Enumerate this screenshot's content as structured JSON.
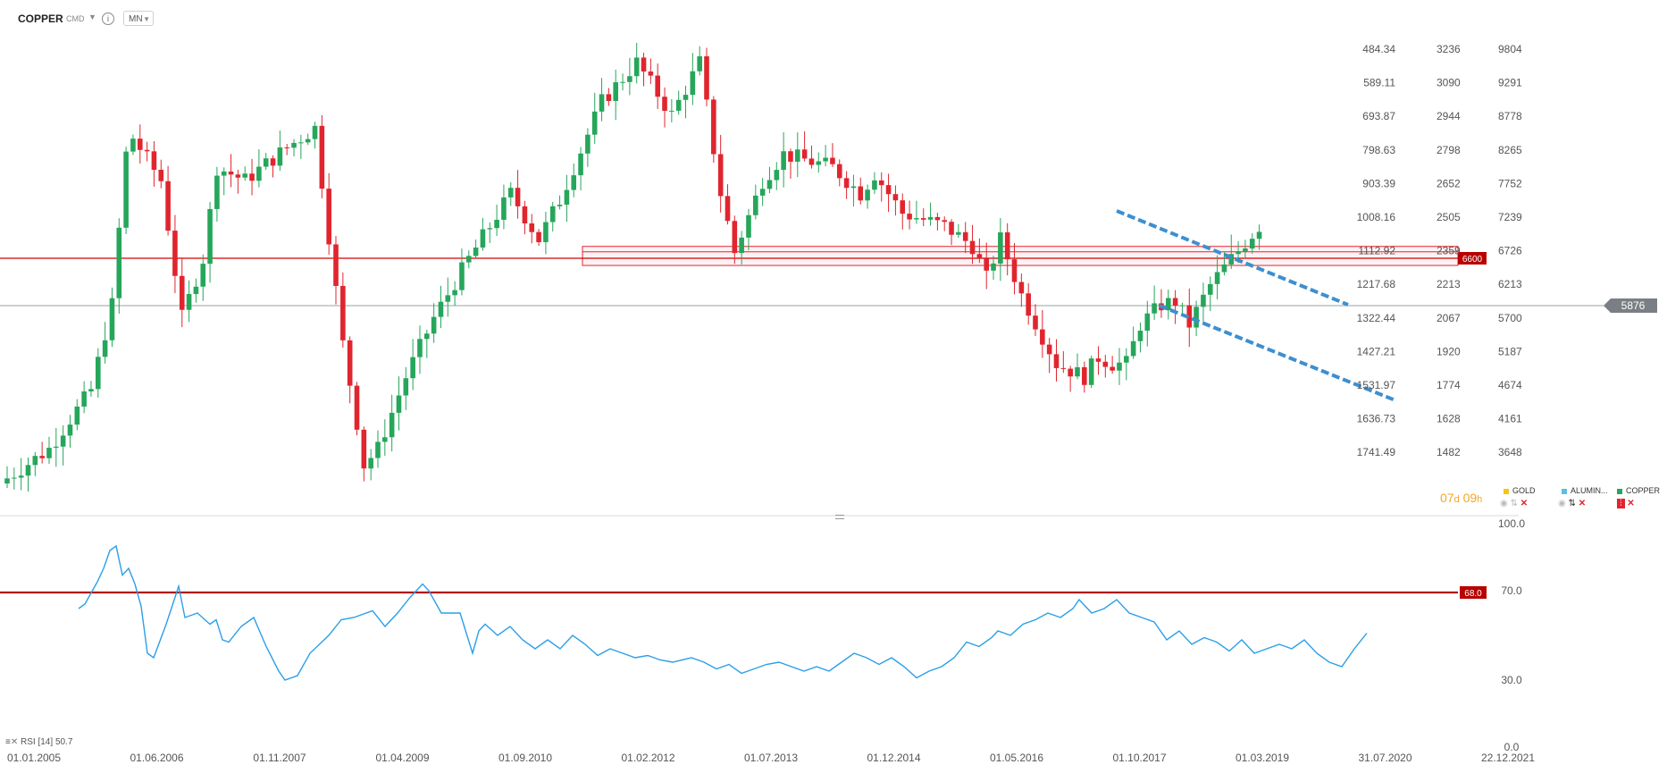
{
  "header": {
    "symbol": "COPPER",
    "category": "CMD",
    "caret": "▼",
    "info_icon": "i",
    "timeframe": "MN",
    "timeframe_caret": "▼"
  },
  "colors": {
    "up": "#26a65b",
    "down": "#e0252e",
    "rsi_line": "#2b9fe8",
    "level": "#d40000",
    "channel": "#3d8fd0",
    "grid_text": "#555555"
  },
  "axis_inner": [
    "484.34",
    "589.11",
    "693.87",
    "798.63",
    "903.39",
    "1008.16",
    "1112.92",
    "1217.68",
    "1322.44",
    "1427.21",
    "1531.97",
    "1636.73",
    "1741.49"
  ],
  "axis_middle": [
    "3236",
    "3090",
    "2944",
    "2798",
    "2652",
    "2505",
    "2359",
    "2213",
    "2067",
    "1920",
    "1774",
    "1628",
    "1482"
  ],
  "axis_price": [
    "9804",
    "9291",
    "8778",
    "8265",
    "7752",
    "7239",
    "6726",
    "6213",
    "5700",
    "5187",
    "4674",
    "4161",
    "3648"
  ],
  "x_labels": [
    "01.01.2005",
    "01.06.2006",
    "01.11.2007",
    "01.04.2009",
    "01.09.2010",
    "01.02.2012",
    "01.07.2013",
    "01.12.2014",
    "01.05.2016",
    "01.10.2017",
    "01.03.2019",
    "31.07.2020",
    "22.12.2021"
  ],
  "level_label": "6600",
  "current_price": "5876",
  "rsi_axis": [
    "100.0",
    "70.0",
    "30.0",
    "0.0"
  ],
  "rsi_level_label": "68.0",
  "rsi_indicator": {
    "name": "RSI [14]",
    "value": "50.7"
  },
  "timer": {
    "d_num": "07",
    "d_unit": "d",
    "h_num": "09",
    "h_unit": "h"
  },
  "legend": [
    {
      "name": "GOLD",
      "color": "#f5c518"
    },
    {
      "name": "ALUMIN...",
      "color": "#5bc0de"
    },
    {
      "name": "COPPER",
      "color": "#26a65b"
    }
  ],
  "chart_data": {
    "type": "candlestick",
    "symbol": "COPPER",
    "interval": "MN",
    "y_axis": {
      "min": 3400,
      "max": 10000
    },
    "horizontal_level": 6600,
    "current_price": 5876,
    "x_range": [
      "01.01.2005",
      "22.12.2021"
    ],
    "months": 180,
    "keypoints_close": [
      [
        0,
        3250
      ],
      [
        6,
        3700
      ],
      [
        12,
        4600
      ],
      [
        15,
        5900
      ],
      [
        17,
        8200
      ],
      [
        18,
        8450
      ],
      [
        22,
        7800
      ],
      [
        25,
        5700
      ],
      [
        28,
        6600
      ],
      [
        30,
        8000
      ],
      [
        34,
        7800
      ],
      [
        40,
        8300
      ],
      [
        44,
        8600
      ],
      [
        48,
        5300
      ],
      [
        50,
        4100
      ],
      [
        51,
        3450
      ],
      [
        53,
        3700
      ],
      [
        57,
        4800
      ],
      [
        61,
        5700
      ],
      [
        66,
        6600
      ],
      [
        72,
        7600
      ],
      [
        76,
        6900
      ],
      [
        79,
        7500
      ],
      [
        85,
        9000
      ],
      [
        90,
        9600
      ],
      [
        95,
        8800
      ],
      [
        99,
        9600
      ],
      [
        102,
        7600
      ],
      [
        104,
        6700
      ],
      [
        108,
        7800
      ],
      [
        111,
        8200
      ],
      [
        118,
        8000
      ],
      [
        122,
        7600
      ],
      [
        124,
        7900
      ],
      [
        128,
        7300
      ],
      [
        134,
        7100
      ],
      [
        138,
        6800
      ],
      [
        140,
        6300
      ],
      [
        142,
        6900
      ],
      [
        145,
        6050
      ],
      [
        150,
        5000
      ],
      [
        154,
        4800
      ],
      [
        156,
        5100
      ],
      [
        158,
        5000
      ],
      [
        160,
        5000
      ],
      [
        162,
        5600
      ],
      [
        165,
        5900
      ],
      [
        167,
        5950
      ],
      [
        169,
        5600
      ],
      [
        172,
        6200
      ],
      [
        175,
        6600
      ],
      [
        179,
        7100
      ]
    ],
    "rsi": {
      "period": 14,
      "last_value": 50.7,
      "level": 68.0,
      "range": [
        0,
        100
      ],
      "keypoints": [
        [
          8,
          62
        ],
        [
          9,
          64
        ],
        [
          11,
          74
        ],
        [
          12,
          80
        ],
        [
          13,
          88
        ],
        [
          14,
          90
        ],
        [
          15,
          77
        ],
        [
          16,
          80
        ],
        [
          17,
          73
        ],
        [
          18,
          63
        ],
        [
          19,
          42
        ],
        [
          20,
          40
        ],
        [
          22,
          55
        ],
        [
          24,
          72
        ],
        [
          25,
          58
        ],
        [
          27,
          60
        ],
        [
          29,
          55
        ],
        [
          30,
          57
        ],
        [
          31,
          48
        ],
        [
          32,
          47
        ],
        [
          34,
          54
        ],
        [
          36,
          58
        ],
        [
          38,
          45
        ],
        [
          40,
          34
        ],
        [
          41,
          30
        ],
        [
          43,
          32
        ],
        [
          45,
          42
        ],
        [
          48,
          50
        ],
        [
          50,
          57
        ],
        [
          52,
          58
        ],
        [
          55,
          61
        ],
        [
          57,
          54
        ],
        [
          59,
          60
        ],
        [
          61,
          67
        ],
        [
          63,
          73
        ],
        [
          64,
          70
        ],
        [
          66,
          60
        ],
        [
          69,
          60
        ],
        [
          71,
          42
        ],
        [
          72,
          52
        ],
        [
          73,
          55
        ],
        [
          75,
          50
        ],
        [
          77,
          54
        ],
        [
          79,
          48
        ],
        [
          81,
          44
        ],
        [
          83,
          48
        ],
        [
          85,
          44
        ],
        [
          87,
          50
        ],
        [
          89,
          46
        ],
        [
          91,
          41
        ],
        [
          93,
          44
        ],
        [
          95,
          42
        ],
        [
          97,
          40
        ],
        [
          99,
          41
        ],
        [
          101,
          39
        ],
        [
          103,
          38
        ],
        [
          106,
          40
        ],
        [
          108,
          38
        ],
        [
          110,
          35
        ],
        [
          112,
          37
        ],
        [
          114,
          33
        ],
        [
          116,
          35
        ],
        [
          118,
          37
        ],
        [
          120,
          38
        ],
        [
          122,
          36
        ],
        [
          124,
          34
        ],
        [
          126,
          36
        ],
        [
          128,
          34
        ],
        [
          130,
          38
        ],
        [
          132,
          42
        ],
        [
          134,
          40
        ],
        [
          136,
          37
        ],
        [
          138,
          40
        ],
        [
          140,
          36
        ],
        [
          142,
          31
        ],
        [
          144,
          34
        ],
        [
          146,
          36
        ],
        [
          148,
          40
        ],
        [
          150,
          47
        ],
        [
          152,
          45
        ],
        [
          154,
          49
        ],
        [
          155,
          52
        ],
        [
          157,
          50
        ],
        [
          159,
          55
        ],
        [
          161,
          57
        ],
        [
          163,
          60
        ],
        [
          165,
          58
        ],
        [
          167,
          62
        ],
        [
          168,
          66
        ],
        [
          170,
          60
        ],
        [
          172,
          62
        ],
        [
          174,
          66
        ],
        [
          176,
          60
        ],
        [
          178,
          58
        ],
        [
          180,
          56
        ],
        [
          182,
          48
        ],
        [
          184,
          52
        ],
        [
          186,
          46
        ],
        [
          188,
          49
        ],
        [
          190,
          47
        ],
        [
          192,
          43
        ],
        [
          194,
          48
        ],
        [
          196,
          42
        ],
        [
          198,
          44
        ],
        [
          200,
          46
        ],
        [
          202,
          44
        ],
        [
          204,
          48
        ],
        [
          206,
          42
        ],
        [
          208,
          38
        ],
        [
          210,
          36
        ],
        [
          212,
          44
        ],
        [
          214,
          51
        ]
      ]
    },
    "annotations": {
      "support_zone": [
        6500,
        6750
      ],
      "descending_channel_upper": [
        [
          165,
          7400
        ],
        [
          192,
          5900
        ]
      ],
      "descending_channel_lower": [
        [
          165,
          5950
        ],
        [
          202,
          4400
        ]
      ]
    }
  }
}
